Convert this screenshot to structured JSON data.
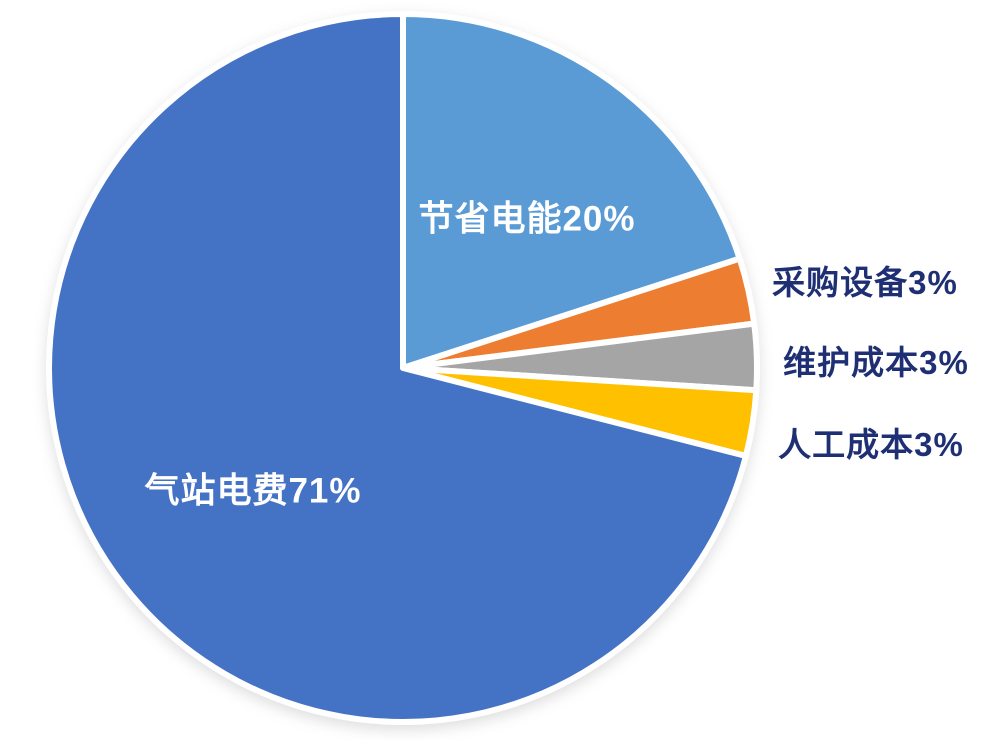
{
  "chart_data": {
    "type": "pie",
    "categories": [
      "节省电能",
      "采购设备",
      "维护成本",
      "人工成本",
      "气站电费"
    ],
    "values": [
      20,
      3,
      3,
      3,
      71
    ],
    "unit": "%",
    "slices": [
      {
        "label": "节省电能",
        "value": 20,
        "display": "节省电能20%",
        "color": "#5B9BD5",
        "label_placement": "inside"
      },
      {
        "label": "采购设备",
        "value": 3,
        "display": "采购设备3%",
        "color": "#ED7D31",
        "label_placement": "outside"
      },
      {
        "label": "维护成本",
        "value": 3,
        "display": "维护成本3%",
        "color": "#A5A5A5",
        "label_placement": "outside"
      },
      {
        "label": "人工成本",
        "value": 3,
        "display": "人工成本3%",
        "color": "#FFC000",
        "label_placement": "outside"
      },
      {
        "label": "气站电费",
        "value": 71,
        "display": "气站电费71%",
        "color": "#4472C4",
        "label_placement": "inside"
      }
    ],
    "start_angle_deg": 0,
    "direction": "clockwise",
    "slice_border_color": "#FFFFFF",
    "inside_label_color": "#FFFFFF",
    "outside_label_color": "#1E2F73",
    "background": "#FFFFFF",
    "legend": "none",
    "title": ""
  }
}
